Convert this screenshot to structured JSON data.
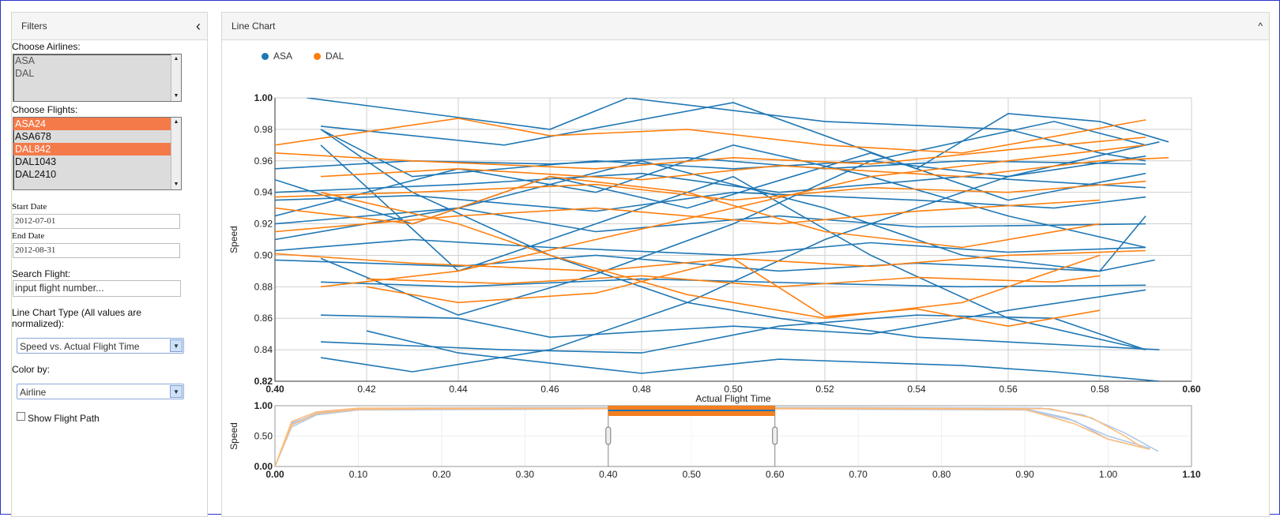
{
  "filters": {
    "title": "Filters",
    "collapse_icon": "‹",
    "airlines_label": "Choose Airlines:",
    "airlines": [
      "ASA",
      "DAL"
    ],
    "flights_label": "Choose Flights:",
    "flights": [
      {
        "label": "ASA24",
        "selected": true
      },
      {
        "label": "ASA678",
        "selected": false
      },
      {
        "label": "DAL842",
        "selected": true
      },
      {
        "label": "DAL1043",
        "selected": false
      },
      {
        "label": "DAL2410",
        "selected": false
      }
    ],
    "start_date_label": "Start Date",
    "start_date": "2012-07-01",
    "end_date_label": "End Date",
    "end_date": "2012-08-31",
    "search_label": "Search Flight:",
    "search_placeholder": "input flight number...",
    "chart_type_label": "Line Chart Type (All values are normalized):",
    "chart_type_value": "Speed vs. Actual Flight Time",
    "color_by_label": "Color by:",
    "color_by_value": "Airline",
    "show_path_label": "Show Flight Path",
    "show_path_checked": false
  },
  "chart_panel": {
    "title": "Line Chart",
    "collapse_icon": "^"
  },
  "colors": {
    "ASA": "#1f77b4",
    "DAL": "#ff7f0e",
    "ASA_light": "#aec7e8",
    "DAL_light": "#ffbb78",
    "selected": "#f47a4a"
  },
  "chart_data": [
    {
      "type": "line",
      "legend": [
        {
          "name": "ASA",
          "color": "#1f77b4"
        },
        {
          "name": "DAL",
          "color": "#ff7f0e"
        }
      ],
      "legend_position": "top-left",
      "xlabel": "Actual Flight Time",
      "ylabel": "Speed",
      "xlim": [
        0.4,
        0.6
      ],
      "ylim": [
        0.82,
        1.0
      ],
      "x_ticks": [
        "0.40",
        "0.42",
        "0.44",
        "0.46",
        "0.48",
        "0.50",
        "0.52",
        "0.54",
        "0.56",
        "0.58",
        "0.60"
      ],
      "y_ticks": [
        "0.82",
        "0.84",
        "0.86",
        "0.88",
        "0.90",
        "0.92",
        "0.94",
        "0.96",
        "0.98",
        "1.00"
      ],
      "grid": "vertical and horizontal",
      "series": [
        {
          "airline": "ASA",
          "x": [
            0.407,
            0.46,
            0.477,
            0.52,
            0.56,
            0.58,
            0.59
          ],
          "y": [
            1.0,
            0.98,
            1.0,
            0.985,
            0.98,
            0.965,
            0.96
          ]
        },
        {
          "airline": "ASA",
          "x": [
            0.41,
            0.45,
            0.5,
            0.54,
            0.56,
            0.58,
            0.595
          ],
          "y": [
            0.982,
            0.97,
            0.997,
            0.955,
            0.99,
            0.985,
            0.972
          ]
        },
        {
          "airline": "ASA",
          "x": [
            0.41,
            0.43,
            0.47,
            0.5,
            0.53,
            0.56,
            0.59
          ],
          "y": [
            0.98,
            0.95,
            0.96,
            0.955,
            0.96,
            0.95,
            0.963
          ]
        },
        {
          "airline": "ASA",
          "x": [
            0.4,
            0.43,
            0.46,
            0.49,
            0.52,
            0.55,
            0.59
          ],
          "y": [
            0.955,
            0.96,
            0.958,
            0.962,
            0.955,
            0.96,
            0.958
          ]
        },
        {
          "airline": "ASA",
          "x": [
            0.4,
            0.44,
            0.48,
            0.51,
            0.55,
            0.59
          ],
          "y": [
            0.94,
            0.945,
            0.952,
            0.94,
            0.95,
            0.943
          ]
        },
        {
          "airline": "ASA",
          "x": [
            0.4,
            0.43,
            0.47,
            0.5,
            0.54,
            0.57,
            0.59
          ],
          "y": [
            0.935,
            0.938,
            0.928,
            0.94,
            0.935,
            0.93,
            0.937
          ]
        },
        {
          "airline": "ASA",
          "x": [
            0.4,
            0.44,
            0.47,
            0.51,
            0.54,
            0.59
          ],
          "y": [
            0.92,
            0.93,
            0.915,
            0.925,
            0.918,
            0.92
          ]
        },
        {
          "airline": "ASA",
          "x": [
            0.4,
            0.43,
            0.46,
            0.5,
            0.53,
            0.56,
            0.59
          ],
          "y": [
            0.903,
            0.91,
            0.905,
            0.9,
            0.908,
            0.902,
            0.905
          ]
        },
        {
          "airline": "ASA",
          "x": [
            0.4,
            0.44,
            0.47,
            0.51,
            0.54,
            0.58,
            0.592
          ],
          "y": [
            0.897,
            0.893,
            0.9,
            0.89,
            0.895,
            0.89,
            0.897
          ]
        },
        {
          "airline": "ASA",
          "x": [
            0.41,
            0.44,
            0.48,
            0.52,
            0.55,
            0.59
          ],
          "y": [
            0.883,
            0.88,
            0.885,
            0.882,
            0.88,
            0.881
          ]
        },
        {
          "airline": "ASA",
          "x": [
            0.41,
            0.44,
            0.46,
            0.5,
            0.53,
            0.56,
            0.59
          ],
          "y": [
            0.862,
            0.86,
            0.848,
            0.855,
            0.85,
            0.865,
            0.878
          ]
        },
        {
          "airline": "ASA",
          "x": [
            0.41,
            0.45,
            0.48,
            0.51,
            0.54,
            0.57,
            0.59
          ],
          "y": [
            0.845,
            0.84,
            0.838,
            0.855,
            0.862,
            0.86,
            0.84
          ]
        },
        {
          "airline": "ASA",
          "x": [
            0.42,
            0.44,
            0.48,
            0.51,
            0.55,
            0.57,
            0.593
          ],
          "y": [
            0.852,
            0.838,
            0.825,
            0.834,
            0.83,
            0.826,
            0.82
          ]
        },
        {
          "airline": "ASA",
          "x": [
            0.41,
            0.43,
            0.46,
            0.49,
            0.52,
            0.56,
            0.593
          ],
          "y": [
            0.835,
            0.826,
            0.84,
            0.87,
            0.91,
            0.95,
            0.972
          ]
        },
        {
          "airline": "ASA",
          "x": [
            0.41,
            0.44,
            0.47,
            0.5,
            0.53,
            0.57,
            0.59
          ],
          "y": [
            0.898,
            0.862,
            0.888,
            0.92,
            0.96,
            0.985,
            0.97
          ]
        },
        {
          "airline": "ASA",
          "x": [
            0.41,
            0.43,
            0.46,
            0.49,
            0.51,
            0.54,
            0.593
          ],
          "y": [
            0.98,
            0.94,
            0.9,
            0.87,
            0.86,
            0.848,
            0.84
          ]
        },
        {
          "airline": "ASA",
          "x": [
            0.41,
            0.44,
            0.47,
            0.5,
            0.53,
            0.56,
            0.59
          ],
          "y": [
            0.97,
            0.89,
            0.92,
            0.95,
            0.9,
            0.86,
            0.84
          ]
        },
        {
          "airline": "ASA",
          "x": [
            0.4,
            0.44,
            0.47,
            0.5,
            0.53,
            0.56,
            0.59
          ],
          "y": [
            0.925,
            0.955,
            0.94,
            0.97,
            0.95,
            0.925,
            0.905
          ]
        },
        {
          "airline": "ASA",
          "x": [
            0.4,
            0.43,
            0.46,
            0.49,
            0.53,
            0.56,
            0.59
          ],
          "y": [
            0.948,
            0.92,
            0.95,
            0.93,
            0.965,
            0.935,
            0.952
          ]
        },
        {
          "airline": "ASA",
          "x": [
            0.4,
            0.44,
            0.48,
            0.52,
            0.55,
            0.58,
            0.59
          ],
          "y": [
            0.91,
            0.93,
            0.96,
            0.93,
            0.9,
            0.89,
            0.925
          ]
        },
        {
          "airline": "DAL",
          "x": [
            0.4,
            0.44,
            0.46,
            0.49,
            0.52,
            0.55,
            0.59
          ],
          "y": [
            0.97,
            0.987,
            0.976,
            0.98,
            0.97,
            0.965,
            0.986
          ]
        },
        {
          "airline": "DAL",
          "x": [
            0.4,
            0.43,
            0.47,
            0.5,
            0.53,
            0.56,
            0.59
          ],
          "y": [
            0.965,
            0.96,
            0.955,
            0.962,
            0.958,
            0.967,
            0.975
          ]
        },
        {
          "airline": "DAL",
          "x": [
            0.41,
            0.44,
            0.48,
            0.51,
            0.55,
            0.58,
            0.595
          ],
          "y": [
            0.95,
            0.955,
            0.948,
            0.957,
            0.95,
            0.96,
            0.962
          ]
        },
        {
          "airline": "DAL",
          "x": [
            0.4,
            0.43,
            0.47,
            0.5,
            0.53,
            0.56,
            0.59
          ],
          "y": [
            0.937,
            0.94,
            0.945,
            0.935,
            0.943,
            0.94,
            0.947
          ]
        },
        {
          "airline": "DAL",
          "x": [
            0.4,
            0.44,
            0.47,
            0.51,
            0.54,
            0.58
          ],
          "y": [
            0.915,
            0.925,
            0.93,
            0.92,
            0.928,
            0.935
          ]
        },
        {
          "airline": "DAL",
          "x": [
            0.4,
            0.43,
            0.47,
            0.5,
            0.53,
            0.56,
            0.59
          ],
          "y": [
            0.901,
            0.895,
            0.89,
            0.898,
            0.893,
            0.9,
            0.903
          ]
        },
        {
          "airline": "DAL",
          "x": [
            0.42,
            0.45,
            0.48,
            0.51,
            0.54,
            0.57,
            0.58
          ],
          "y": [
            0.885,
            0.882,
            0.887,
            0.88,
            0.886,
            0.883,
            0.887
          ]
        },
        {
          "airline": "DAL",
          "x": [
            0.42,
            0.44,
            0.47,
            0.5,
            0.52,
            0.54,
            0.56,
            0.58
          ],
          "y": [
            0.88,
            0.87,
            0.876,
            0.898,
            0.861,
            0.866,
            0.855,
            0.865
          ]
        },
        {
          "airline": "DAL",
          "x": [
            0.41,
            0.44,
            0.46,
            0.49,
            0.52,
            0.55,
            0.58
          ],
          "y": [
            0.94,
            0.92,
            0.9,
            0.875,
            0.86,
            0.87,
            0.9
          ]
        },
        {
          "airline": "DAL",
          "x": [
            0.41,
            0.44,
            0.47,
            0.5,
            0.53,
            0.56,
            0.59
          ],
          "y": [
            0.88,
            0.89,
            0.91,
            0.93,
            0.95,
            0.96,
            0.97
          ]
        },
        {
          "airline": "DAL",
          "x": [
            0.4,
            0.43,
            0.46,
            0.49,
            0.52,
            0.55,
            0.58
          ],
          "y": [
            0.93,
            0.92,
            0.95,
            0.94,
            0.915,
            0.905,
            0.92
          ]
        }
      ]
    },
    {
      "type": "line",
      "role": "overview / brush",
      "xlabel": "",
      "ylabel": "Speed",
      "xlim": [
        0.0,
        1.1
      ],
      "ylim": [
        0.0,
        1.0
      ],
      "x_ticks": [
        "0.00",
        "0.10",
        "0.20",
        "0.30",
        "0.40",
        "0.50",
        "0.60",
        "0.70",
        "0.80",
        "0.90",
        "1.00",
        "1.10"
      ],
      "y_ticks": [
        "0.00",
        "0.50",
        "1.00"
      ],
      "brush_range": [
        0.4,
        0.6
      ],
      "series": [
        {
          "airline": "ASA",
          "x": [
            0.0,
            0.02,
            0.05,
            0.1,
            0.3,
            0.5,
            0.7,
            0.9,
            0.95,
            1.0,
            1.05
          ],
          "y": [
            0.0,
            0.7,
            0.88,
            0.95,
            0.96,
            0.95,
            0.96,
            0.95,
            0.8,
            0.5,
            0.3
          ]
        },
        {
          "airline": "ASA",
          "x": [
            0.0,
            0.02,
            0.05,
            0.1,
            0.3,
            0.5,
            0.7,
            0.9,
            0.96,
            1.0,
            1.03
          ],
          "y": [
            0.0,
            0.65,
            0.85,
            0.93,
            0.94,
            0.96,
            0.94,
            0.93,
            0.75,
            0.45,
            0.35
          ]
        },
        {
          "airline": "ASA",
          "x": [
            0.0,
            0.02,
            0.06,
            0.1,
            0.3,
            0.5,
            0.7,
            0.92,
            0.97,
            1.02,
            1.06
          ],
          "y": [
            0.0,
            0.72,
            0.9,
            0.96,
            0.97,
            0.97,
            0.97,
            0.96,
            0.85,
            0.55,
            0.25
          ]
        },
        {
          "airline": "DAL",
          "x": [
            0.0,
            0.02,
            0.05,
            0.1,
            0.3,
            0.5,
            0.7,
            0.9,
            0.96,
            1.0,
            1.05
          ],
          "y": [
            0.0,
            0.68,
            0.87,
            0.94,
            0.95,
            0.95,
            0.95,
            0.94,
            0.7,
            0.45,
            0.28
          ]
        },
        {
          "airline": "DAL",
          "x": [
            0.0,
            0.02,
            0.05,
            0.1,
            0.3,
            0.5,
            0.7,
            0.93,
            0.98,
            1.02,
            1.04
          ],
          "y": [
            0.0,
            0.74,
            0.9,
            0.96,
            0.96,
            0.96,
            0.96,
            0.95,
            0.8,
            0.5,
            0.32
          ]
        }
      ]
    }
  ]
}
